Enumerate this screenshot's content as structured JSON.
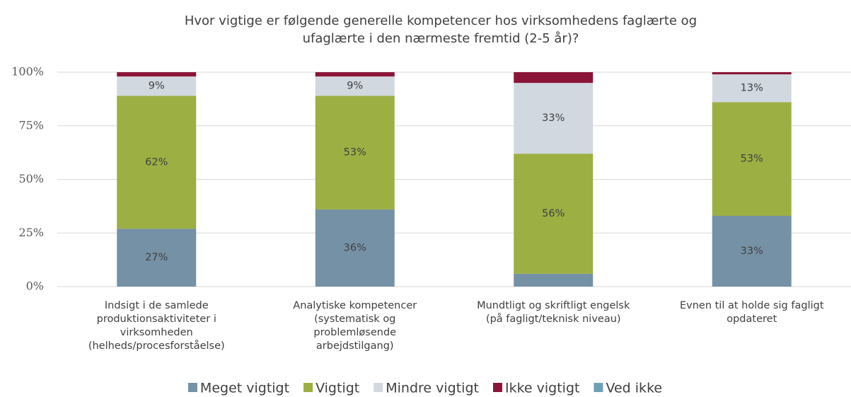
{
  "chart_data": {
    "type": "stacked_bar",
    "title": [
      "Hvor vigtige er følgende generelle kompetencer hos virksomhedens faglærte og",
      "ufaglærte i den nærmeste fremtid (2-5 år)?"
    ],
    "categories": [
      [
        "Indsigt i de samlede",
        "produktionsaktiviteter i",
        "virksomheden",
        "(helheds/procesforståelse)"
      ],
      [
        "Analytiske kompetencer",
        "(systematisk og",
        "problemløsende",
        "arbejdstilgang)"
      ],
      [
        "Mundtligt og skriftligt engelsk",
        "(på fagligt/teknisk niveau)"
      ],
      [
        "Evnen til at holde sig fagligt",
        "opdateret"
      ]
    ],
    "series": [
      {
        "name": "Meget vigtigt",
        "color": "#7591a6",
        "values": [
          27,
          36,
          6,
          33
        ],
        "value_labels": [
          "27%",
          "36%",
          null,
          "33%"
        ]
      },
      {
        "name": "Vigtigt",
        "color": "#9caf43",
        "values": [
          62,
          53,
          56,
          53
        ],
        "value_labels": [
          "62%",
          "53%",
          "56%",
          "53%"
        ]
      },
      {
        "name": "Mindre vigtigt",
        "color": "#d1d8e0",
        "values": [
          9,
          9,
          33,
          13
        ],
        "value_labels": [
          "9%",
          "9%",
          "33%",
          "13%"
        ]
      },
      {
        "name": "Ikke vigtigt",
        "color": "#8b1538",
        "values": [
          2,
          2,
          5,
          1
        ],
        "value_labels": [
          null,
          null,
          null,
          null
        ]
      },
      {
        "name": "Ved ikke",
        "color": "#6fa0b5",
        "values": [
          0,
          0,
          0,
          0
        ],
        "value_labels": [
          null,
          null,
          null,
          null
        ]
      }
    ],
    "ylim": [
      0,
      100
    ],
    "yticks": [
      {
        "value": 0,
        "label": "0%"
      },
      {
        "value": 25,
        "label": "25%"
      },
      {
        "value": 50,
        "label": "50%"
      },
      {
        "value": 75,
        "label": "75%"
      },
      {
        "value": 100,
        "label": "100%"
      }
    ],
    "grid": true,
    "legend": "bottom"
  }
}
